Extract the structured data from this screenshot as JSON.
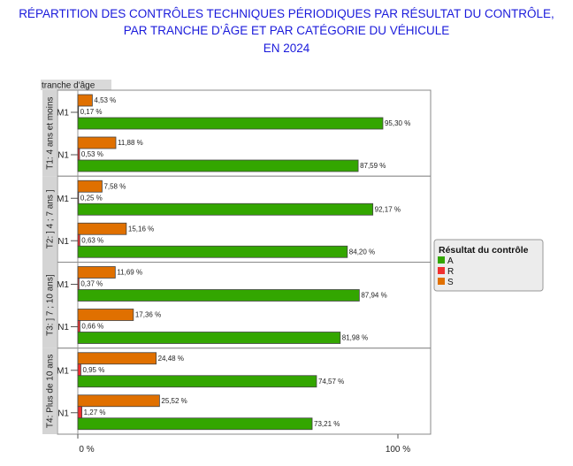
{
  "chart_data": {
    "type": "bar",
    "orientation": "horizontal",
    "title_lines": [
      "RÉPARTITION DES CONTRÔLES TECHNIQUES PÉRIODIQUES PAR RÉSULTAT DU CONTRÔLE,",
      "PAR TRANCHE D’ÂGE ET PAR CATÉGORIE DU VÉHICULE",
      "EN 2024"
    ],
    "facet_label": "tranche d'âge",
    "facets": [
      "T1: 4 ans et moins",
      "T2: ] 4 ; 7 ans ]",
      "T3: ] 7 ; 10 ans]",
      "T4: Plus de 10 ans"
    ],
    "categories": [
      "M1",
      "N1"
    ],
    "series": [
      {
        "name": "S",
        "color": "#e07000",
        "values": [
          [
            4.53,
            11.88
          ],
          [
            7.58,
            15.16
          ],
          [
            11.69,
            17.36
          ],
          [
            24.48,
            25.52
          ]
        ]
      },
      {
        "name": "R",
        "color": "#f03030",
        "values": [
          [
            0.17,
            0.53
          ],
          [
            0.25,
            0.63
          ],
          [
            0.37,
            0.66
          ],
          [
            0.95,
            1.27
          ]
        ]
      },
      {
        "name": "A",
        "color": "#33a600",
        "values": [
          [
            95.3,
            87.59
          ],
          [
            92.17,
            84.2
          ],
          [
            87.94,
            81.98
          ],
          [
            74.57,
            73.21
          ]
        ]
      }
    ],
    "xlim": [
      0,
      100
    ],
    "x_ticks": [
      "0 %",
      "100 %"
    ],
    "legend": {
      "title": "Résultat du contrôle",
      "entries": [
        "A",
        "R",
        "S"
      ],
      "placement": "right"
    }
  }
}
